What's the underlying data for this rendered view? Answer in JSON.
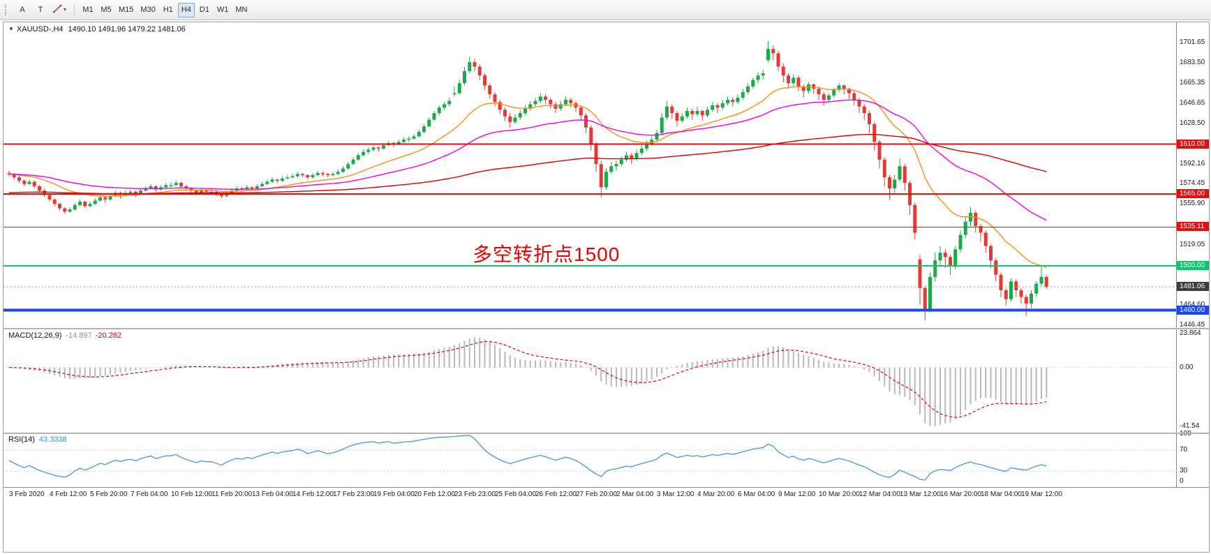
{
  "icons": {
    "collapse": "▼",
    "caret": "▾"
  },
  "toolbar": {
    "buttons": [
      {
        "label": "A"
      },
      {
        "label": "T"
      }
    ],
    "timeframes": [
      "M1",
      "M5",
      "M15",
      "M30",
      "H1",
      "H4",
      "D1",
      "W1",
      "MN"
    ],
    "active_timeframe": "H4"
  },
  "chart_data": {
    "type": "candlestick",
    "symbol_title": "XAUUSD-,H4",
    "ohlc_text": "1490.10 1491.96 1479.22 1481.06",
    "ylim": [
      1444,
      1720
    ],
    "up_color": "#1ba94c",
    "down_color": "#e53935",
    "price_ticks": [
      {
        "label": "1701.65",
        "value": 1701.65
      },
      {
        "label": "1683.50",
        "value": 1683.5
      },
      {
        "label": "1665.35",
        "value": 1665.35
      },
      {
        "label": "1646.65",
        "value": 1646.65
      },
      {
        "label": "1628.50",
        "value": 1628.5
      },
      {
        "label": "1592.16",
        "value": 1592.16
      },
      {
        "label": "1574.45",
        "value": 1574.45
      },
      {
        "label": "1555.90",
        "value": 1555.9
      },
      {
        "label": "1519.05",
        "value": 1519.05
      },
      {
        "label": "1464.60",
        "value": 1464.6
      },
      {
        "label": "1446.45",
        "value": 1446.45
      }
    ],
    "levels": [
      {
        "label": "1610.00",
        "value": 1610.0,
        "color": "#dd1111",
        "width": 2
      },
      {
        "label": "1565.00",
        "value": 1565.0,
        "color": "#dd1111",
        "width": 2
      },
      {
        "label": "1535.11",
        "value": 1535.11,
        "color": "#dd1111",
        "width": 1
      },
      {
        "label": "1500.00",
        "value": 1500.0,
        "color": "#0fc46a",
        "width": 2
      },
      {
        "label": "1460.00",
        "value": 1460.0,
        "color": "#1a46f5",
        "width": 4
      }
    ],
    "bid": {
      "label": "1481.06",
      "value": 1481.06,
      "bg": "#3d3d3d"
    },
    "annotation": {
      "text": "多空转折点1500",
      "color": "#e60000",
      "x": 672,
      "value": 1514
    },
    "moving_averages": [
      {
        "period": 20,
        "color": "#ff8c1a",
        "method": "ema"
      },
      {
        "period": 50,
        "color": "#ee00ee",
        "method": "ema"
      },
      {
        "period": 180,
        "color": "#d40000",
        "method": "ema",
        "seed": 1566
      }
    ],
    "candles": [
      [
        1584,
        1586,
        1581,
        1583
      ],
      [
        1583,
        1584,
        1578,
        1580
      ],
      [
        1580,
        1582,
        1575,
        1577
      ],
      [
        1577,
        1578,
        1572,
        1574
      ],
      [
        1574,
        1578,
        1573,
        1576
      ],
      [
        1576,
        1577,
        1570,
        1572
      ],
      [
        1572,
        1573,
        1566,
        1568
      ],
      [
        1568,
        1570,
        1562,
        1564
      ],
      [
        1564,
        1565,
        1558,
        1560
      ],
      [
        1560,
        1561,
        1554,
        1556
      ],
      [
        1556,
        1557,
        1550,
        1552
      ],
      [
        1552,
        1553,
        1547,
        1549
      ],
      [
        1549,
        1553,
        1548,
        1551
      ],
      [
        1551,
        1557,
        1550,
        1555
      ],
      [
        1555,
        1560,
        1554,
        1558
      ],
      [
        1558,
        1559,
        1552,
        1554
      ],
      [
        1554,
        1558,
        1553,
        1556
      ],
      [
        1556,
        1561,
        1555,
        1559
      ],
      [
        1559,
        1564,
        1558,
        1562
      ],
      [
        1562,
        1563,
        1557,
        1560
      ],
      [
        1560,
        1565,
        1559,
        1563
      ],
      [
        1563,
        1568,
        1562,
        1566
      ],
      [
        1566,
        1567,
        1561,
        1564
      ],
      [
        1564,
        1568,
        1563,
        1566
      ],
      [
        1566,
        1569,
        1564,
        1567
      ],
      [
        1567,
        1568,
        1562,
        1565
      ],
      [
        1565,
        1570,
        1564,
        1568
      ],
      [
        1568,
        1572,
        1567,
        1570
      ],
      [
        1570,
        1574,
        1569,
        1572
      ],
      [
        1572,
        1573,
        1567,
        1569
      ],
      [
        1569,
        1573,
        1568,
        1571
      ],
      [
        1571,
        1575,
        1570,
        1573
      ],
      [
        1573,
        1576,
        1571,
        1573
      ],
      [
        1573,
        1577,
        1572,
        1575
      ],
      [
        1575,
        1576,
        1570,
        1572
      ],
      [
        1572,
        1573,
        1568,
        1570
      ],
      [
        1570,
        1571,
        1566,
        1568
      ],
      [
        1568,
        1569,
        1564,
        1566
      ],
      [
        1566,
        1570,
        1565,
        1568
      ],
      [
        1568,
        1569,
        1565,
        1567
      ],
      [
        1567,
        1570,
        1566,
        1567
      ],
      [
        1567,
        1568,
        1563,
        1565
      ],
      [
        1565,
        1566,
        1561,
        1563
      ],
      [
        1563,
        1568,
        1562,
        1566
      ],
      [
        1566,
        1570,
        1565,
        1568
      ],
      [
        1568,
        1572,
        1567,
        1570
      ],
      [
        1570,
        1571,
        1567,
        1569
      ],
      [
        1569,
        1573,
        1568,
        1571
      ],
      [
        1571,
        1572,
        1568,
        1570
      ],
      [
        1570,
        1574,
        1569,
        1572
      ],
      [
        1572,
        1576,
        1571,
        1574
      ],
      [
        1574,
        1578,
        1573,
        1576
      ],
      [
        1576,
        1580,
        1575,
        1578
      ],
      [
        1578,
        1579,
        1575,
        1577
      ],
      [
        1577,
        1581,
        1576,
        1579
      ],
      [
        1579,
        1582,
        1578,
        1580
      ],
      [
        1580,
        1583,
        1579,
        1581
      ],
      [
        1581,
        1585,
        1580,
        1583
      ],
      [
        1583,
        1584,
        1580,
        1582
      ],
      [
        1582,
        1583,
        1578,
        1580
      ],
      [
        1580,
        1584,
        1579,
        1582
      ],
      [
        1582,
        1586,
        1581,
        1584
      ],
      [
        1584,
        1585,
        1581,
        1583
      ],
      [
        1583,
        1584,
        1580,
        1582
      ],
      [
        1582,
        1585,
        1581,
        1583
      ],
      [
        1583,
        1587,
        1582,
        1585
      ],
      [
        1585,
        1590,
        1584,
        1588
      ],
      [
        1588,
        1594,
        1587,
        1592
      ],
      [
        1592,
        1598,
        1591,
        1596
      ],
      [
        1596,
        1602,
        1595,
        1600
      ],
      [
        1600,
        1605,
        1599,
        1603
      ],
      [
        1603,
        1607,
        1601,
        1605
      ],
      [
        1605,
        1609,
        1603,
        1607
      ],
      [
        1607,
        1608,
        1603,
        1606
      ],
      [
        1606,
        1611,
        1605,
        1609
      ],
      [
        1609,
        1613,
        1608,
        1611
      ],
      [
        1611,
        1612,
        1607,
        1610
      ],
      [
        1610,
        1614,
        1609,
        1612
      ],
      [
        1612,
        1616,
        1611,
        1614
      ],
      [
        1614,
        1617,
        1612,
        1615
      ],
      [
        1615,
        1619,
        1614,
        1617
      ],
      [
        1617,
        1623,
        1616,
        1621
      ],
      [
        1621,
        1628,
        1620,
        1626
      ],
      [
        1626,
        1634,
        1625,
        1632
      ],
      [
        1632,
        1640,
        1631,
        1638
      ],
      [
        1638,
        1645,
        1636,
        1643
      ],
      [
        1643,
        1648,
        1641,
        1646
      ],
      [
        1646,
        1652,
        1644,
        1649
      ],
      [
        1655,
        1662,
        1653,
        1656
      ],
      [
        1656,
        1668,
        1655,
        1665
      ],
      [
        1665,
        1680,
        1663,
        1676
      ],
      [
        1676,
        1689,
        1674,
        1684
      ],
      [
        1684,
        1687,
        1676,
        1680
      ],
      [
        1680,
        1682,
        1668,
        1672
      ],
      [
        1672,
        1674,
        1659,
        1663
      ],
      [
        1663,
        1665,
        1651,
        1655
      ],
      [
        1655,
        1657,
        1644,
        1648
      ],
      [
        1648,
        1650,
        1637,
        1641
      ],
      [
        1641,
        1643,
        1631,
        1635
      ],
      [
        1635,
        1638,
        1625,
        1630
      ],
      [
        1630,
        1637,
        1628,
        1634
      ],
      [
        1634,
        1641,
        1632,
        1638
      ],
      [
        1638,
        1645,
        1636,
        1642
      ],
      [
        1642,
        1649,
        1640,
        1646
      ],
      [
        1646,
        1652,
        1644,
        1649
      ],
      [
        1649,
        1656,
        1647,
        1653
      ],
      [
        1653,
        1655,
        1646,
        1650
      ],
      [
        1650,
        1652,
        1642,
        1646
      ],
      [
        1646,
        1648,
        1638,
        1642
      ],
      [
        1642,
        1649,
        1640,
        1646
      ],
      [
        1646,
        1653,
        1644,
        1650
      ],
      [
        1650,
        1652,
        1643,
        1647
      ],
      [
        1647,
        1649,
        1639,
        1643
      ],
      [
        1643,
        1645,
        1632,
        1636
      ],
      [
        1636,
        1638,
        1620,
        1625
      ],
      [
        1625,
        1627,
        1604,
        1610
      ],
      [
        1610,
        1612,
        1585,
        1592
      ],
      [
        1592,
        1595,
        1562,
        1571
      ],
      [
        1571,
        1588,
        1569,
        1585
      ],
      [
        1585,
        1594,
        1583,
        1590
      ],
      [
        1590,
        1595,
        1586,
        1592
      ],
      [
        1592,
        1599,
        1590,
        1596
      ],
      [
        1596,
        1603,
        1594,
        1600
      ],
      [
        1600,
        1602,
        1592,
        1597
      ],
      [
        1597,
        1605,
        1595,
        1602
      ],
      [
        1602,
        1609,
        1600,
        1606
      ],
      [
        1606,
        1613,
        1604,
        1610
      ],
      [
        1610,
        1617,
        1608,
        1614
      ],
      [
        1614,
        1623,
        1612,
        1620
      ],
      [
        1620,
        1638,
        1618,
        1634
      ],
      [
        1634,
        1649,
        1632,
        1644
      ],
      [
        1644,
        1646,
        1633,
        1638
      ],
      [
        1638,
        1640,
        1626,
        1631
      ],
      [
        1631,
        1638,
        1629,
        1635
      ],
      [
        1635,
        1643,
        1633,
        1640
      ],
      [
        1640,
        1642,
        1632,
        1637
      ],
      [
        1637,
        1644,
        1635,
        1640
      ],
      [
        1640,
        1641,
        1631,
        1636
      ],
      [
        1636,
        1644,
        1634,
        1641
      ],
      [
        1641,
        1648,
        1639,
        1645
      ],
      [
        1645,
        1647,
        1638,
        1643
      ],
      [
        1643,
        1650,
        1641,
        1647
      ],
      [
        1647,
        1653,
        1645,
        1650
      ],
      [
        1650,
        1652,
        1644,
        1648
      ],
      [
        1648,
        1655,
        1646,
        1652
      ],
      [
        1652,
        1660,
        1650,
        1657
      ],
      [
        1657,
        1665,
        1655,
        1662
      ],
      [
        1662,
        1670,
        1660,
        1668
      ],
      [
        1668,
        1675,
        1665,
        1672
      ],
      [
        1672,
        1677,
        1668,
        1674
      ],
      [
        1686,
        1703,
        1684,
        1696
      ],
      [
        1696,
        1699,
        1686,
        1692
      ],
      [
        1692,
        1694,
        1676,
        1680
      ],
      [
        1680,
        1683,
        1666,
        1672
      ],
      [
        1672,
        1674,
        1660,
        1665
      ],
      [
        1665,
        1673,
        1663,
        1670
      ],
      [
        1670,
        1672,
        1658,
        1662
      ],
      [
        1662,
        1664,
        1652,
        1658
      ],
      [
        1658,
        1666,
        1656,
        1664
      ],
      [
        1664,
        1665,
        1655,
        1660
      ],
      [
        1660,
        1662,
        1650,
        1655
      ],
      [
        1655,
        1657,
        1645,
        1650
      ],
      [
        1650,
        1656,
        1648,
        1654
      ],
      [
        1654,
        1661,
        1652,
        1659
      ],
      [
        1659,
        1665,
        1657,
        1663
      ],
      [
        1663,
        1664,
        1655,
        1660
      ],
      [
        1660,
        1661,
        1651,
        1656
      ],
      [
        1656,
        1658,
        1645,
        1650
      ],
      [
        1650,
        1652,
        1638,
        1644
      ],
      [
        1644,
        1646,
        1632,
        1638
      ],
      [
        1638,
        1640,
        1620,
        1628
      ],
      [
        1628,
        1630,
        1604,
        1612
      ],
      [
        1612,
        1614,
        1588,
        1596
      ],
      [
        1596,
        1598,
        1572,
        1580
      ],
      [
        1580,
        1582,
        1560,
        1570
      ],
      [
        1570,
        1582,
        1566,
        1578
      ],
      [
        1578,
        1597,
        1576,
        1590
      ],
      [
        1590,
        1592,
        1568,
        1575
      ],
      [
        1575,
        1577,
        1546,
        1555
      ],
      [
        1555,
        1557,
        1524,
        1530
      ],
      [
        1506,
        1510,
        1465,
        1480
      ],
      [
        1480,
        1482,
        1451,
        1460
      ],
      [
        1460,
        1494,
        1458,
        1490
      ],
      [
        1490,
        1512,
        1486,
        1505
      ],
      [
        1505,
        1518,
        1500,
        1512
      ],
      [
        1512,
        1515,
        1498,
        1508
      ],
      [
        1508,
        1510,
        1492,
        1500
      ],
      [
        1500,
        1518,
        1497,
        1515
      ],
      [
        1515,
        1532,
        1512,
        1528
      ],
      [
        1528,
        1545,
        1525,
        1540
      ],
      [
        1540,
        1553,
        1536,
        1548
      ],
      [
        1548,
        1550,
        1530,
        1536
      ],
      [
        1536,
        1538,
        1522,
        1530
      ],
      [
        1530,
        1532,
        1512,
        1518
      ],
      [
        1518,
        1520,
        1498,
        1505
      ],
      [
        1505,
        1507,
        1486,
        1492
      ],
      [
        1492,
        1494,
        1472,
        1478
      ],
      [
        1478,
        1480,
        1464,
        1470
      ],
      [
        1470,
        1489,
        1468,
        1486
      ],
      [
        1486,
        1488,
        1472,
        1478
      ],
      [
        1478,
        1480,
        1466,
        1472
      ],
      [
        1472,
        1474,
        1455,
        1466
      ],
      [
        1466,
        1478,
        1462,
        1475
      ],
      [
        1475,
        1486,
        1472,
        1484
      ],
      [
        1484,
        1500,
        1482,
        1490.1
      ],
      [
        1490.1,
        1491.96,
        1479.22,
        1481.06
      ]
    ],
    "macd": {
      "label": "MACD(12,26,9)",
      "value_main": "-14.897",
      "value_signal": "-20.282",
      "fast": 12,
      "slow": 26,
      "signal": 9,
      "hist_color": "#b8b8b8",
      "signal_color": "#dd0000",
      "ticks": [
        {
          "label": "23.864",
          "value": 23.864
        },
        {
          "label": "0.00",
          "value": 0
        },
        {
          "label": "-41.54",
          "value": -41.54
        }
      ]
    },
    "rsi": {
      "label": "RSI(14)",
      "value_text": "43.3338",
      "period": 14,
      "color": "#4a94d8",
      "levels": [
        70,
        30
      ],
      "ticks": [
        {
          "label": "100",
          "value": 100
        },
        {
          "label": "70",
          "value": 70
        },
        {
          "label": "30",
          "value": 30
        },
        {
          "label": "0",
          "value": 0
        }
      ]
    },
    "time_labels": [
      "3 Feb 2020",
      "4 Feb 12:00",
      "5 Feb 20:00",
      "7 Feb 04:00",
      "10 Feb 12:00",
      "11 Feb 20:00",
      "13 Feb 04:00",
      "14 Feb 12:00",
      "17 Feb 23:00",
      "19 Feb 04:00",
      "20 Feb 12:00",
      "23 Feb 23:00",
      "25 Feb 04:00",
      "26 Feb 12:00",
      "27 Feb 20:00",
      "2 Mar 04:00",
      "3 Mar 12:00",
      "4 Mar 20:00",
      "6 Mar 04:00",
      "9 Mar 12:00",
      "10 Mar 20:00",
      "12 Mar 04:00",
      "13 Mar 12:00",
      "16 Mar 20:00",
      "18 Mar 04:00",
      "19 Mar 12:00"
    ]
  }
}
